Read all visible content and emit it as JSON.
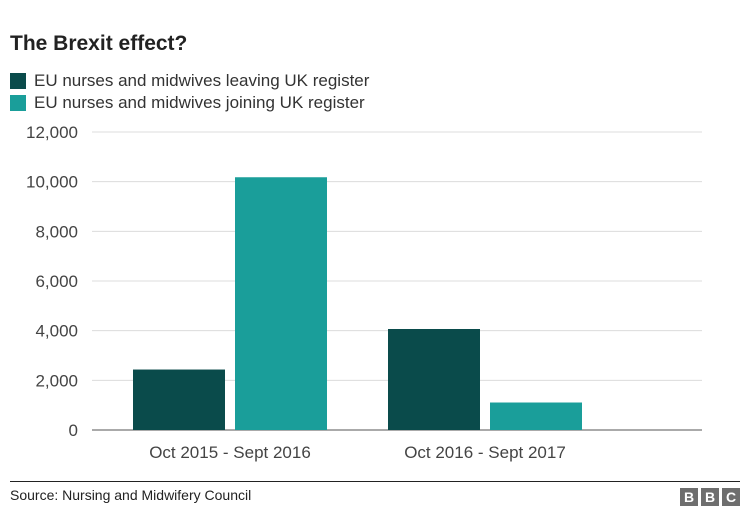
{
  "chart_data": {
    "type": "bar",
    "title": "The Brexit effect?",
    "categories": [
      "Oct 2015 - Sept 2016",
      "Oct 2016 - Sept 2017"
    ],
    "series": [
      {
        "name": "EU nurses and midwives leaving UK register",
        "values": [
          2435,
          4067
        ],
        "color": "#0a4b4b"
      },
      {
        "name": "EU nurses and midwives joining UK register",
        "values": [
          10178,
          1107
        ],
        "color": "#1a9e9a"
      }
    ],
    "yticks": [
      "0",
      "2,000",
      "4,000",
      "6,000",
      "8,000",
      "10,000",
      "12,000"
    ],
    "ylim": [
      0,
      12000
    ],
    "grid": true,
    "legend": "top-left"
  },
  "footer": {
    "source": "Source: Nursing and Midwifery Council",
    "logo": [
      "B",
      "B",
      "C"
    ]
  }
}
